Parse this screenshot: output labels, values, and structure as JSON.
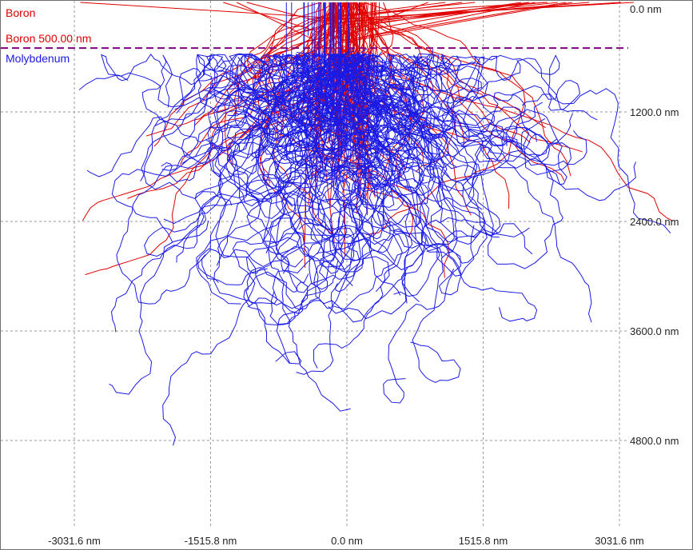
{
  "chart_data": {
    "type": "line",
    "title": "",
    "xlabel": "",
    "ylabel": "",
    "x_ticks": [
      "-3031.6 nm",
      "-1515.8 nm",
      "0.0 nm",
      "1515.8 nm",
      "3031.6 nm"
    ],
    "y_ticks": [
      "0.0 nm",
      "1200.0 nm",
      "2400.0 nm",
      "3600.0 nm",
      "4800.0 nm"
    ],
    "xlim": [
      -3800,
      3800
    ],
    "ylim": [
      0,
      5600
    ],
    "grid": true,
    "layers": [
      {
        "name": "Boron",
        "color": "#e00000",
        "top": 0,
        "bottom": 500
      },
      {
        "name": "Molybdenum",
        "color": "#1a1ae6",
        "top": 500,
        "bottom": null
      }
    ],
    "interface_label": "Boron 500.00 nm",
    "interface_depth": 500,
    "interface_color": "#800080",
    "series": [
      {
        "name": "Boron",
        "color": "#e00000",
        "kind": "ion trajectories (red, entering from surface)"
      },
      {
        "name": "Molybdenum",
        "color": "#1a1ae6",
        "kind": "recoil trajectories (blue, spreading below interface)"
      }
    ]
  },
  "colors": {
    "grid": "#9a9a9a",
    "ion": "#e00000",
    "recoil": "#1a1ae6",
    "interface": "#800080"
  }
}
